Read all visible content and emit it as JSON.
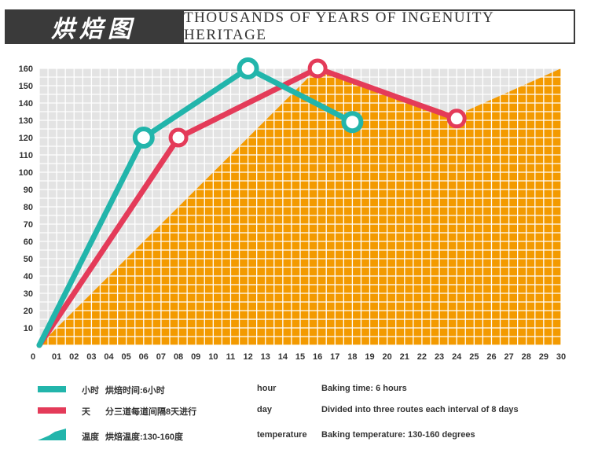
{
  "header": {
    "brand": "烘焙图",
    "tagline": "THOUSANDS OF YEARS OF INGENUITY HERITAGE"
  },
  "colors": {
    "hour": "#22b5ab",
    "day": "#e43b59",
    "temperature": "#f39a00",
    "grid": "#ffffff",
    "header_bg": "#3a3a3a"
  },
  "chart_data": {
    "type": "line",
    "title": "",
    "xlabel": "",
    "ylabel": "",
    "xlim": [
      0,
      30
    ],
    "ylim": [
      0,
      160
    ],
    "grid": true,
    "x_ticks": [
      "0",
      "01",
      "02",
      "03",
      "04",
      "05",
      "06",
      "07",
      "08",
      "09",
      "10",
      "11",
      "12",
      "13",
      "14",
      "15",
      "16",
      "17",
      "18",
      "19",
      "20",
      "21",
      "22",
      "23",
      "24",
      "25",
      "26",
      "27",
      "28",
      "29",
      "30"
    ],
    "y_ticks": [
      10,
      20,
      30,
      40,
      50,
      60,
      70,
      80,
      90,
      100,
      110,
      120,
      130,
      140,
      150,
      160
    ],
    "series": [
      {
        "name": "temperature",
        "type": "area",
        "color": "#f39a00",
        "x": [
          0,
          16,
          24,
          30
        ],
        "y": [
          0,
          160,
          133,
          160
        ]
      },
      {
        "name": "day",
        "type": "line",
        "color": "#e43b59",
        "x": [
          0,
          8,
          16,
          24
        ],
        "y": [
          0,
          120,
          160,
          131
        ],
        "markers": [
          8,
          16,
          24
        ]
      },
      {
        "name": "hour",
        "type": "line",
        "color": "#22b5ab",
        "x": [
          0,
          6,
          12,
          18
        ],
        "y": [
          0,
          120,
          160,
          129
        ],
        "markers": [
          6,
          12,
          18
        ]
      }
    ]
  },
  "legend": [
    {
      "key": "hour",
      "symbol": "小时",
      "zh": "烘焙时间:6小时",
      "en": "hour",
      "desc": "Baking time: 6 hours"
    },
    {
      "key": "day",
      "symbol": "天",
      "zh": "分三道每道间隔8天进行",
      "en": "day",
      "desc": "Divided into three routes each interval of 8 days"
    },
    {
      "key": "temperature",
      "symbol": "温度",
      "zh": "烘焙温度:130-160度",
      "en": "temperature",
      "desc": "Baking temperature: 130-160 degrees"
    }
  ]
}
